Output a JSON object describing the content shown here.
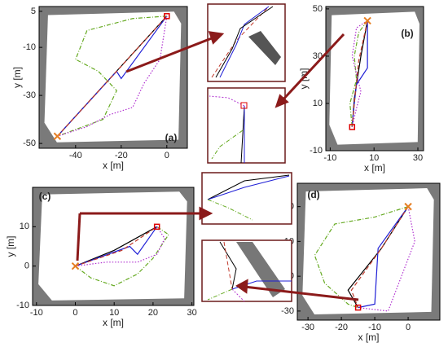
{
  "chart_data": [
    {
      "type": "line",
      "label": "(a)",
      "xlabel": "x [m]",
      "ylabel": "y [m]",
      "xlim": [
        -56,
        9
      ],
      "ylim": [
        -52,
        7
      ],
      "xticks": [
        -40,
        -20,
        0
      ],
      "yticks": [
        5,
        -10,
        -30,
        -50
      ],
      "series": [
        {
          "color": "#000000",
          "style": "solid",
          "x": [
            -48,
            -24,
            0
          ],
          "values": [
            -47,
            -22,
            3
          ]
        },
        {
          "color": "#1f1fd6",
          "style": "solid",
          "x": [
            -48,
            -22,
            -20,
            0
          ],
          "values": [
            -47,
            -20,
            -23,
            3
          ]
        },
        {
          "color": "#c0392b",
          "style": "dashed",
          "x": [
            -48,
            -23,
            0
          ],
          "values": [
            -47,
            -21,
            3
          ]
        },
        {
          "color": "#66aa22",
          "style": "dashdot",
          "x": [
            0,
            -15,
            -35,
            -40,
            -30,
            -22,
            -28,
            -48
          ],
          "values": [
            3,
            2,
            -3,
            -15,
            -20,
            -28,
            -40,
            -47
          ]
        },
        {
          "color": "#b030d0",
          "style": "dotted",
          "x": [
            0,
            -3,
            -10,
            -15,
            -25,
            -35,
            -48
          ],
          "values": [
            3,
            -15,
            -25,
            -35,
            -38,
            -43,
            -47
          ]
        }
      ]
    },
    {
      "type": "line",
      "label": "(b)",
      "xlabel": "x [m]",
      "ylabel": "y [m]",
      "xlim": [
        -12,
        32.6
      ],
      "ylim": [
        -10,
        51
      ],
      "xticks": [
        -10,
        10,
        30
      ],
      "yticks": [
        50,
        30,
        10,
        -10
      ],
      "series": [
        {
          "color": "#000000",
          "style": "solid",
          "x": [
            7,
            4,
            1,
            0
          ],
          "values": [
            45,
            30,
            12,
            0
          ]
        },
        {
          "color": "#1f1fd6",
          "style": "solid",
          "x": [
            7,
            7,
            2,
            1,
            0
          ],
          "values": [
            45,
            25,
            18,
            10,
            0
          ]
        },
        {
          "color": "#c0392b",
          "style": "dashed",
          "x": [
            7,
            3,
            1,
            0
          ],
          "values": [
            45,
            28,
            10,
            0
          ]
        },
        {
          "color": "#66aa22",
          "style": "dashdot",
          "x": [
            7,
            3,
            1,
            2,
            -1,
            0
          ],
          "values": [
            45,
            40,
            30,
            20,
            10,
            0
          ]
        },
        {
          "color": "#b030d0",
          "style": "dotted",
          "x": [
            7,
            2,
            0,
            4,
            2,
            0
          ],
          "values": [
            45,
            42,
            30,
            15,
            8,
            0
          ]
        }
      ]
    },
    {
      "type": "line",
      "label": "(c)",
      "xlabel": "x [m]",
      "ylabel": "y [m]",
      "xlim": [
        -11,
        30.5
      ],
      "ylim": [
        -10,
        20
      ],
      "xticks": [
        -10,
        0,
        10,
        20,
        30
      ],
      "yticks": [
        10,
        0,
        -10
      ],
      "series": [
        {
          "color": "#000000",
          "style": "solid",
          "x": [
            0,
            10,
            21
          ],
          "values": [
            0,
            4,
            10
          ]
        },
        {
          "color": "#1f1fd6",
          "style": "solid",
          "x": [
            0,
            14,
            16,
            21
          ],
          "values": [
            0,
            5,
            3,
            10
          ]
        },
        {
          "color": "#c0392b",
          "style": "dashed",
          "x": [
            0,
            12,
            21
          ],
          "values": [
            0,
            4,
            10
          ]
        },
        {
          "color": "#66aa22",
          "style": "dashdot",
          "x": [
            0,
            4,
            10,
            16,
            20,
            24,
            21
          ],
          "values": [
            0,
            -3,
            -5,
            -2,
            2,
            8,
            10
          ]
        },
        {
          "color": "#b030d0",
          "style": "dotted",
          "x": [
            0,
            8,
            16,
            21,
            23,
            21
          ],
          "values": [
            0,
            1,
            1,
            3,
            7,
            10
          ]
        }
      ]
    },
    {
      "type": "line",
      "label": "(d)",
      "xlabel": "x [m]",
      "ylabel": "y [m]",
      "xlim": [
        -33.2,
        9.5
      ],
      "ylim": [
        -32.6,
        6.7
      ],
      "xticks": [
        -30,
        -20,
        -10,
        0
      ],
      "yticks": [
        0,
        -10,
        -20,
        -30
      ],
      "series": [
        {
          "color": "#000000",
          "style": "solid",
          "x": [
            0,
            -8,
            -18,
            -15
          ],
          "values": [
            0,
            -12,
            -24,
            -29
          ]
        },
        {
          "color": "#1f1fd6",
          "style": "solid",
          "x": [
            0,
            -9,
            -10,
            -15
          ],
          "values": [
            0,
            -12,
            -28,
            -29
          ]
        },
        {
          "color": "#c0392b",
          "style": "dashed",
          "x": [
            0,
            -8,
            -17,
            -15
          ],
          "values": [
            0,
            -12,
            -24,
            -29
          ]
        },
        {
          "color": "#66aa22",
          "style": "dashdot",
          "x": [
            0,
            -10,
            -22,
            -28,
            -25,
            -18,
            -15
          ],
          "values": [
            0,
            -3,
            -5,
            -14,
            -22,
            -28,
            -29
          ]
        },
        {
          "color": "#b030d0",
          "style": "dotted",
          "x": [
            0,
            2,
            -2,
            -6,
            -15
          ],
          "values": [
            0,
            -10,
            -20,
            -30,
            -29
          ]
        }
      ]
    }
  ]
}
